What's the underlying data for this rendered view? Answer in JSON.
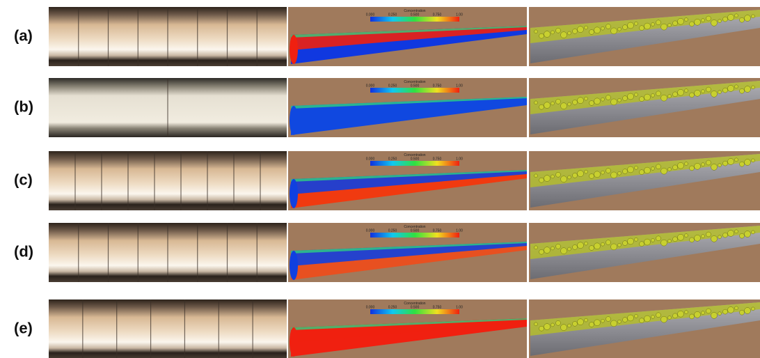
{
  "rows": [
    {
      "label": "(a)"
    },
    {
      "label": "(b)"
    },
    {
      "label": "(c)"
    },
    {
      "label": "(d)"
    },
    {
      "label": "(e)"
    }
  ],
  "colorbar": {
    "title": "Concentration",
    "ticks": [
      "0.000",
      "0.250",
      "0.500",
      "0.750",
      "1.00"
    ]
  }
}
